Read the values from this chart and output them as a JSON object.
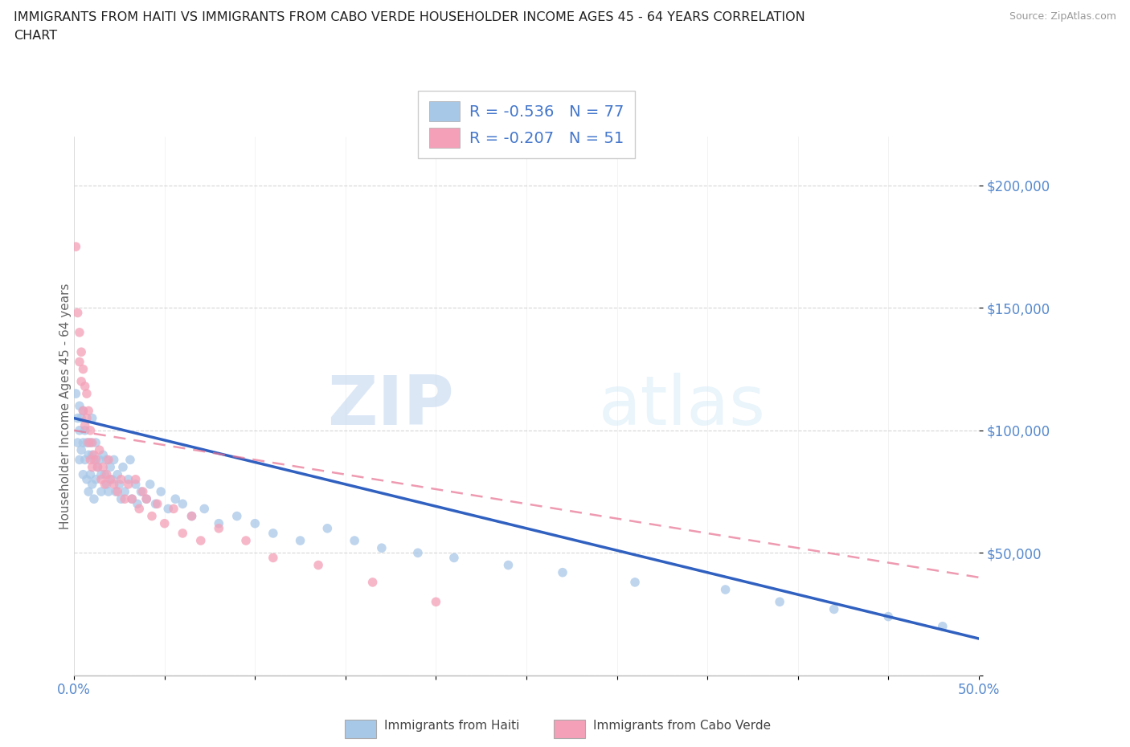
{
  "title_line1": "IMMIGRANTS FROM HAITI VS IMMIGRANTS FROM CABO VERDE HOUSEHOLDER INCOME AGES 45 - 64 YEARS CORRELATION",
  "title_line2": "CHART",
  "source": "Source: ZipAtlas.com",
  "ylabel": "Householder Income Ages 45 - 64 years",
  "xlim": [
    0.0,
    0.5
  ],
  "ylim": [
    0,
    220000
  ],
  "haiti_color": "#a8c8e8",
  "cabo_verde_color": "#f4a0b8",
  "haiti_line_color": "#3060c0",
  "cabo_verde_line_color": "#e87090",
  "haiti_R": -0.536,
  "haiti_N": 77,
  "cabo_verde_R": -0.207,
  "cabo_verde_N": 51,
  "watermark_zip": "ZIP",
  "watermark_atlas": "atlas",
  "background_color": "#ffffff",
  "haiti_scatter_x": [
    0.001,
    0.002,
    0.002,
    0.003,
    0.003,
    0.003,
    0.004,
    0.004,
    0.005,
    0.005,
    0.005,
    0.006,
    0.006,
    0.007,
    0.007,
    0.008,
    0.008,
    0.009,
    0.009,
    0.01,
    0.01,
    0.01,
    0.011,
    0.011,
    0.012,
    0.012,
    0.013,
    0.014,
    0.015,
    0.015,
    0.016,
    0.017,
    0.018,
    0.018,
    0.019,
    0.02,
    0.021,
    0.022,
    0.023,
    0.024,
    0.025,
    0.026,
    0.027,
    0.028,
    0.03,
    0.031,
    0.032,
    0.034,
    0.035,
    0.037,
    0.04,
    0.042,
    0.045,
    0.048,
    0.052,
    0.056,
    0.06,
    0.065,
    0.072,
    0.08,
    0.09,
    0.1,
    0.11,
    0.125,
    0.14,
    0.155,
    0.17,
    0.19,
    0.21,
    0.24,
    0.27,
    0.31,
    0.36,
    0.39,
    0.42,
    0.45,
    0.48
  ],
  "haiti_scatter_y": [
    115000,
    105000,
    95000,
    110000,
    100000,
    88000,
    105000,
    92000,
    108000,
    95000,
    82000,
    100000,
    88000,
    95000,
    80000,
    90000,
    75000,
    95000,
    82000,
    105000,
    90000,
    78000,
    88000,
    72000,
    95000,
    80000,
    85000,
    88000,
    82000,
    75000,
    90000,
    82000,
    78000,
    88000,
    75000,
    85000,
    80000,
    88000,
    75000,
    82000,
    78000,
    72000,
    85000,
    75000,
    80000,
    88000,
    72000,
    78000,
    70000,
    75000,
    72000,
    78000,
    70000,
    75000,
    68000,
    72000,
    70000,
    65000,
    68000,
    62000,
    65000,
    62000,
    58000,
    55000,
    60000,
    55000,
    52000,
    50000,
    48000,
    45000,
    42000,
    38000,
    35000,
    30000,
    27000,
    24000,
    20000
  ],
  "cabo_scatter_x": [
    0.001,
    0.002,
    0.003,
    0.003,
    0.004,
    0.004,
    0.005,
    0.005,
    0.006,
    0.006,
    0.007,
    0.007,
    0.008,
    0.008,
    0.009,
    0.009,
    0.01,
    0.01,
    0.011,
    0.012,
    0.013,
    0.014,
    0.015,
    0.016,
    0.017,
    0.018,
    0.019,
    0.02,
    0.022,
    0.024,
    0.026,
    0.028,
    0.03,
    0.032,
    0.034,
    0.036,
    0.038,
    0.04,
    0.043,
    0.046,
    0.05,
    0.055,
    0.06,
    0.065,
    0.07,
    0.08,
    0.095,
    0.11,
    0.135,
    0.165,
    0.2
  ],
  "cabo_scatter_y": [
    175000,
    148000,
    140000,
    128000,
    132000,
    120000,
    125000,
    108000,
    118000,
    102000,
    115000,
    105000,
    108000,
    95000,
    100000,
    88000,
    95000,
    85000,
    90000,
    88000,
    85000,
    92000,
    80000,
    85000,
    78000,
    82000,
    88000,
    80000,
    78000,
    75000,
    80000,
    72000,
    78000,
    72000,
    80000,
    68000,
    75000,
    72000,
    65000,
    70000,
    62000,
    68000,
    58000,
    65000,
    55000,
    60000,
    55000,
    48000,
    45000,
    38000,
    30000
  ]
}
